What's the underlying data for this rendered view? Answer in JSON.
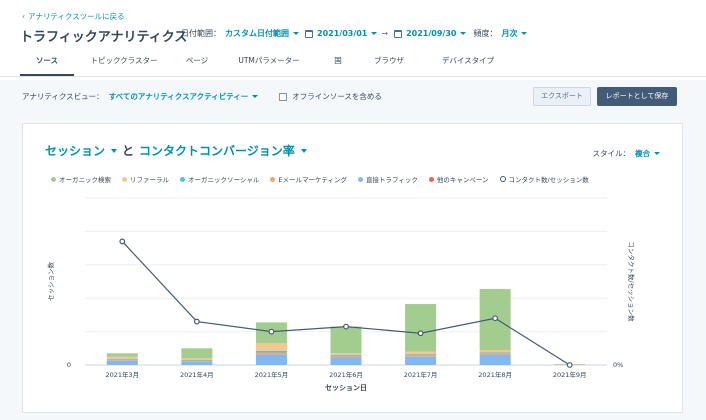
{
  "header": {
    "back_link": "アナリティクスツールに戻る",
    "title": "トラフィックアナリティクス",
    "date_range_label": "日付範囲：",
    "date_range_value": "カスタム日付範囲",
    "start_date": "2021/03/01",
    "end_date": "2021/09/30",
    "frequency_label": "頻度：",
    "frequency_value": "月次"
  },
  "tabs": [
    {
      "label": "ソース"
    },
    {
      "label": "トピッククラスター"
    },
    {
      "label": "ページ"
    },
    {
      "label": "UTMパラメーター"
    },
    {
      "label": "国"
    },
    {
      "label": "ブラウザ"
    },
    {
      "label": "デバイスタイプ"
    }
  ],
  "filters": {
    "view_label": "アナリティクスビュー：",
    "view_value": "すべてのアナリティクスアクティビティー",
    "offline_label": "オフラインソースを含める"
  },
  "buttons": {
    "export": "エクスポート",
    "save_report": "レポートとして保存"
  },
  "card": {
    "metric1": "セッション",
    "connector": "と",
    "metric2": "コンタクトコンバージョン率",
    "style_label": "スタイル：",
    "style_value": "複合"
  },
  "colors": {
    "accent": "#0091ae",
    "organic_search": "#a2cd8e",
    "referrals": "#f5c78e",
    "organic_social": "#52c3d6",
    "email": "#f2a37a",
    "direct": "#7fb8f2",
    "other_campaigns": "#e2655a",
    "line": "#425b76"
  },
  "chart_data": {
    "type": "bar",
    "title": "",
    "xlabel": "セッション日",
    "ylabel": "セッション数",
    "y2label": "コンタクト数/セッション数",
    "categories": [
      "2021年3月",
      "2021年4月",
      "2021年5月",
      "2021年6月",
      "2021年7月",
      "2021年8月",
      "2021年9月"
    ],
    "ylim": [
      0,
      1000
    ],
    "y_tick_labels": [
      "0"
    ],
    "y2_tick_labels": [
      "0%"
    ],
    "stacked": true,
    "series": [
      {
        "name": "オーガニック検索",
        "color": "#a2cd8e",
        "values": [
          20,
          60,
          125,
          160,
          285,
          365,
          5
        ]
      },
      {
        "name": "リファーラル",
        "color": "#f5c78e",
        "values": [
          15,
          10,
          45,
          10,
          15,
          15,
          0
        ]
      },
      {
        "name": "オーガニックソーシャル",
        "color": "#52c3d6",
        "values": [
          5,
          5,
          10,
          5,
          5,
          5,
          0
        ]
      },
      {
        "name": "Eメールマーケティング",
        "color": "#f2a37a",
        "values": [
          5,
          5,
          15,
          10,
          10,
          10,
          0
        ]
      },
      {
        "name": "直接トラフィック",
        "color": "#7fb8f2",
        "values": [
          25,
          20,
          60,
          45,
          50,
          60,
          0
        ]
      },
      {
        "name": "他のキャンペーン",
        "color": "#e2655a",
        "values": [
          0,
          0,
          0,
          0,
          0,
          0,
          0
        ]
      }
    ],
    "line": {
      "name": "コンタクト数/セッション数",
      "color": "#425b76",
      "values": [
        0.74,
        0.26,
        0.2,
        0.23,
        0.19,
        0.28,
        0.0
      ],
      "ylim": [
        0,
        1
      ]
    }
  }
}
